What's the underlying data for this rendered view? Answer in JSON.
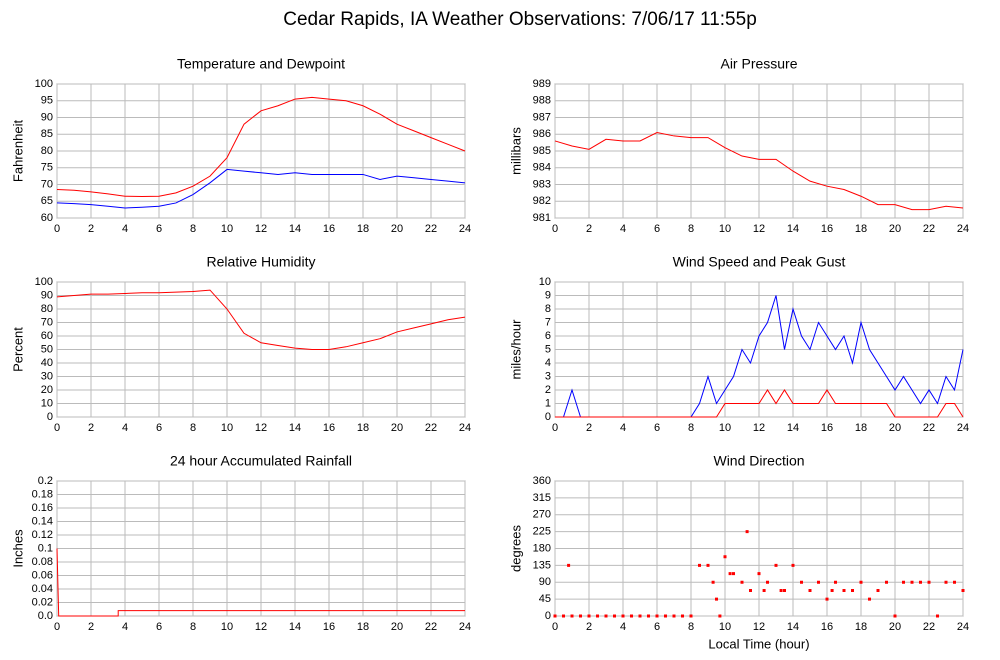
{
  "title": "Cedar Rapids, IA Weather Observations: 7/06/17 11:55p",
  "chart_data": [
    {
      "type": "line",
      "title": "Temperature and Dewpoint",
      "ylabel": "Fahrenheit",
      "x": [
        0,
        1,
        2,
        3,
        4,
        5,
        6,
        7,
        8,
        9,
        10,
        11,
        12,
        13,
        14,
        15,
        16,
        17,
        18,
        19,
        20,
        21,
        22,
        23,
        24
      ],
      "series": [
        {
          "color": "#ff0000",
          "values": [
            68.5,
            68.3,
            67.8,
            67.2,
            66.5,
            66.4,
            66.5,
            67.5,
            69.5,
            72.5,
            78,
            88,
            92,
            93.5,
            95.5,
            96,
            95.5,
            95,
            93.5,
            91,
            88,
            86,
            84,
            82,
            80
          ]
        },
        {
          "color": "#0000ff",
          "values": [
            64.5,
            64.3,
            64,
            63.5,
            63,
            63.2,
            63.5,
            64.5,
            67,
            70.5,
            74.5,
            74,
            73.5,
            73,
            73.5,
            73,
            73,
            73,
            73,
            71.5,
            72.5,
            72,
            71.5,
            71,
            70.5
          ]
        }
      ],
      "xlim": [
        0,
        24
      ],
      "xticks": [
        0,
        2,
        4,
        6,
        8,
        10,
        12,
        14,
        16,
        18,
        20,
        22,
        24
      ],
      "ylim": [
        60,
        100
      ],
      "yticks": [
        60,
        65,
        70,
        75,
        80,
        85,
        90,
        95,
        100
      ],
      "grid": true
    },
    {
      "type": "line",
      "title": "Air Pressure",
      "ylabel": "millibars",
      "x": [
        0,
        1,
        2,
        3,
        4,
        5,
        6,
        7,
        8,
        9,
        10,
        11,
        12,
        13,
        14,
        15,
        16,
        17,
        18,
        19,
        20,
        21,
        22,
        23,
        24
      ],
      "series": [
        {
          "color": "#ff0000",
          "values": [
            985.6,
            985.3,
            985.1,
            985.7,
            985.6,
            985.6,
            986.1,
            985.9,
            985.8,
            985.8,
            985.2,
            984.7,
            984.5,
            984.5,
            983.8,
            983.2,
            982.9,
            982.7,
            982.3,
            981.8,
            981.8,
            981.5,
            981.5,
            981.7,
            981.6
          ]
        }
      ],
      "xlim": [
        0,
        24
      ],
      "xticks": [
        0,
        2,
        4,
        6,
        8,
        10,
        12,
        14,
        16,
        18,
        20,
        22,
        24
      ],
      "ylim": [
        981,
        989
      ],
      "yticks": [
        981,
        982,
        983,
        984,
        985,
        986,
        987,
        988,
        989
      ],
      "grid": true
    },
    {
      "type": "line",
      "title": "Relative Humidity",
      "ylabel": "Percent",
      "x": [
        0,
        1,
        2,
        3,
        4,
        5,
        6,
        7,
        8,
        9,
        10,
        11,
        12,
        13,
        14,
        15,
        16,
        17,
        18,
        19,
        20,
        21,
        22,
        23,
        24
      ],
      "series": [
        {
          "color": "#ff0000",
          "values": [
            89,
            90,
            91,
            91,
            91.5,
            92,
            92,
            92.5,
            93,
            94,
            80,
            62,
            55,
            53,
            51,
            50,
            50,
            52,
            55,
            58,
            63,
            66,
            69,
            72,
            74
          ]
        }
      ],
      "xlim": [
        0,
        24
      ],
      "xticks": [
        0,
        2,
        4,
        6,
        8,
        10,
        12,
        14,
        16,
        18,
        20,
        22,
        24
      ],
      "ylim": [
        0,
        100
      ],
      "yticks": [
        0,
        10,
        20,
        30,
        40,
        50,
        60,
        70,
        80,
        90,
        100
      ],
      "grid": true
    },
    {
      "type": "line",
      "title": "Wind Speed and Peak Gust",
      "ylabel": "miles/hour",
      "x": [
        0,
        0.5,
        1,
        1.5,
        2,
        2.5,
        3,
        3.5,
        4,
        4.5,
        5,
        5.5,
        6,
        6.5,
        7,
        7.5,
        8,
        8.5,
        9,
        9.5,
        10,
        10.5,
        11,
        11.5,
        12,
        12.5,
        13,
        13.5,
        14,
        14.5,
        15,
        15.5,
        16,
        16.5,
        17,
        17.5,
        18,
        18.5,
        19,
        19.5,
        20,
        20.5,
        21,
        21.5,
        22,
        22.5,
        23,
        23.5,
        24
      ],
      "series": [
        {
          "color": "#0000ff",
          "values": [
            0,
            0,
            2,
            0,
            0,
            0,
            0,
            0,
            0,
            0,
            0,
            0,
            0,
            0,
            0,
            0,
            0,
            1,
            3,
            1,
            2,
            3,
            5,
            4,
            6,
            7,
            9,
            5,
            8,
            6,
            5,
            7,
            6,
            5,
            6,
            4,
            7,
            5,
            4,
            3,
            2,
            3,
            2,
            1,
            2,
            1,
            3,
            2,
            5
          ]
        },
        {
          "color": "#ff0000",
          "values": [
            0,
            0,
            0,
            0,
            0,
            0,
            0,
            0,
            0,
            0,
            0,
            0,
            0,
            0,
            0,
            0,
            0,
            0,
            0,
            0,
            1,
            1,
            1,
            1,
            1,
            2,
            1,
            2,
            1,
            1,
            1,
            1,
            2,
            1,
            1,
            1,
            1,
            1,
            1,
            1,
            0,
            0,
            0,
            0,
            0,
            0,
            1,
            1,
            0
          ]
        }
      ],
      "xlim": [
        0,
        24
      ],
      "xticks": [
        0,
        2,
        4,
        6,
        8,
        10,
        12,
        14,
        16,
        18,
        20,
        22,
        24
      ],
      "ylim": [
        0,
        10
      ],
      "yticks": [
        0,
        1,
        2,
        3,
        4,
        5,
        6,
        7,
        8,
        9,
        10
      ],
      "grid": true
    },
    {
      "type": "line",
      "title": "24 hour Accumulated Rainfall",
      "ylabel": "Inches",
      "x": [
        0,
        0.1,
        3.6,
        3.6,
        24
      ],
      "series": [
        {
          "color": "#ff0000",
          "values": [
            0.1,
            0,
            0,
            0.008,
            0.008
          ]
        }
      ],
      "xlim": [
        0,
        24
      ],
      "xticks": [
        0,
        2,
        4,
        6,
        8,
        10,
        12,
        14,
        16,
        18,
        20,
        22,
        24
      ],
      "ylim": [
        0,
        0.2
      ],
      "yticks": [
        {
          "value": 0,
          "label": "0.0"
        },
        0.02,
        0.04,
        0.06,
        0.08,
        0.1,
        0.12,
        0.14,
        0.16,
        0.18,
        0.2
      ],
      "grid": true
    },
    {
      "type": "scatter",
      "title": "Wind Direction",
      "ylabel": "degrees",
      "xlabel": "Local Time (hour)",
      "x": [
        0,
        0.5,
        0.8,
        1,
        1.5,
        2,
        2.5,
        3,
        3.5,
        4,
        4.5,
        5,
        5.5,
        6,
        6.5,
        7,
        7.5,
        8,
        8.5,
        9,
        9.3,
        9.5,
        9.7,
        10,
        10.3,
        10.5,
        11,
        11.3,
        11.5,
        12,
        12.3,
        12.5,
        13,
        13.3,
        13.5,
        14,
        14.5,
        15,
        15.5,
        16,
        16.3,
        16.5,
        17,
        17.5,
        18,
        18.5,
        19,
        19.5,
        20,
        20.5,
        21,
        21.5,
        22,
        22.5,
        23,
        23.5,
        24
      ],
      "series": [
        {
          "color": "#ff0000",
          "values": [
            0,
            0,
            135,
            0,
            0,
            0,
            0,
            0,
            0,
            0,
            0,
            0,
            0,
            0,
            0,
            0,
            0,
            0,
            135,
            135,
            90,
            45,
            0,
            158,
            113,
            113,
            90,
            225,
            68,
            113,
            68,
            90,
            135,
            68,
            68,
            135,
            90,
            68,
            90,
            45,
            68,
            90,
            68,
            68,
            90,
            45,
            68,
            90,
            0,
            90,
            90,
            90,
            90,
            0,
            90,
            90,
            68
          ]
        }
      ],
      "xlim": [
        0,
        24
      ],
      "xticks": [
        0,
        2,
        4,
        6,
        8,
        10,
        12,
        14,
        16,
        18,
        20,
        22,
        24
      ],
      "ylim": [
        0,
        360
      ],
      "yticks": [
        0,
        45,
        90,
        135,
        180,
        225,
        270,
        315,
        360
      ],
      "grid": true
    }
  ]
}
